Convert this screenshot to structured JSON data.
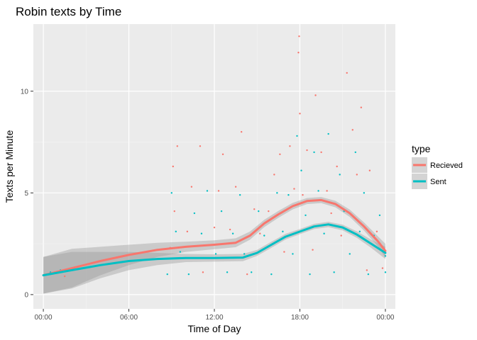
{
  "chart_data": {
    "type": "scatter",
    "title": "Robin texts by Time",
    "xlabel": "Time of Day",
    "ylabel": "Texts per Minute",
    "x_unit": "hours",
    "xlim": [
      -0.7,
      24.7
    ],
    "ylim": [
      -0.7,
      13.3
    ],
    "x_ticks": [
      {
        "value": 0,
        "label": "00:00"
      },
      {
        "value": 6,
        "label": "06:00"
      },
      {
        "value": 12,
        "label": "12:00"
      },
      {
        "value": 18,
        "label": "18:00"
      },
      {
        "value": 24,
        "label": "00:00"
      }
    ],
    "y_ticks": [
      {
        "value": 0,
        "label": "0"
      },
      {
        "value": 5,
        "label": "5"
      },
      {
        "value": 10,
        "label": "10"
      }
    ],
    "grid": true,
    "legend": {
      "title": "type",
      "position": "right",
      "entries": [
        {
          "label": "Recieved",
          "color": "#F8766D"
        },
        {
          "label": "Sent",
          "color": "#00BFC4"
        }
      ]
    },
    "smooth_series": [
      {
        "name": "Recieved",
        "color": "#F8766D",
        "points": [
          [
            0,
            0.95
          ],
          [
            2,
            1.3
          ],
          [
            4,
            1.65
          ],
          [
            6,
            1.95
          ],
          [
            8,
            2.2
          ],
          [
            10,
            2.35
          ],
          [
            12,
            2.45
          ],
          [
            13.5,
            2.55
          ],
          [
            14.5,
            2.9
          ],
          [
            15.5,
            3.5
          ],
          [
            16.5,
            3.95
          ],
          [
            17.5,
            4.35
          ],
          [
            18.5,
            4.6
          ],
          [
            19.5,
            4.65
          ],
          [
            20.5,
            4.45
          ],
          [
            21.5,
            4.0
          ],
          [
            22.5,
            3.35
          ],
          [
            23.5,
            2.6
          ],
          [
            24,
            2.15
          ]
        ],
        "band": [
          0.9,
          0.95,
          0.7,
          0.5,
          0.35,
          0.25,
          0.22,
          0.22,
          0.2,
          0.18,
          0.17,
          0.16,
          0.15,
          0.15,
          0.16,
          0.18,
          0.2,
          0.25,
          0.35
        ]
      },
      {
        "name": "Sent",
        "color": "#00BFC4",
        "points": [
          [
            0,
            0.95
          ],
          [
            2,
            1.2
          ],
          [
            4,
            1.45
          ],
          [
            6,
            1.65
          ],
          [
            8,
            1.75
          ],
          [
            10,
            1.8
          ],
          [
            12,
            1.8
          ],
          [
            14,
            1.82
          ],
          [
            15,
            2.05
          ],
          [
            16,
            2.45
          ],
          [
            17,
            2.85
          ],
          [
            18,
            3.1
          ],
          [
            19,
            3.35
          ],
          [
            20,
            3.45
          ],
          [
            21,
            3.3
          ],
          [
            22,
            2.95
          ],
          [
            23,
            2.5
          ],
          [
            24,
            2.05
          ]
        ],
        "band": [
          0.9,
          0.9,
          0.65,
          0.45,
          0.3,
          0.2,
          0.18,
          0.18,
          0.15,
          0.15,
          0.14,
          0.13,
          0.13,
          0.13,
          0.14,
          0.16,
          0.2,
          0.3
        ]
      }
    ],
    "scatter_series": [
      {
        "name": "Recieved",
        "color": "#F8766D",
        "points": [
          [
            0.3,
            1.0
          ],
          [
            1.5,
            0.9
          ],
          [
            8.9,
            2.3
          ],
          [
            9.2,
            4.1
          ],
          [
            9.1,
            6.3
          ],
          [
            9.4,
            7.3
          ],
          [
            10.1,
            3.1
          ],
          [
            10.4,
            5.3
          ],
          [
            11.0,
            7.3
          ],
          [
            11.2,
            1.1
          ],
          [
            12.0,
            3.3
          ],
          [
            12.3,
            5.1
          ],
          [
            12.6,
            6.9
          ],
          [
            13.1,
            3.2
          ],
          [
            13.5,
            5.3
          ],
          [
            13.9,
            8.0
          ],
          [
            14.3,
            1.0
          ],
          [
            14.8,
            4.2
          ],
          [
            15.2,
            3.0
          ],
          [
            15.8,
            4.1
          ],
          [
            16.2,
            5.9
          ],
          [
            16.6,
            6.9
          ],
          [
            16.9,
            2.1
          ],
          [
            17.3,
            7.3
          ],
          [
            17.6,
            5.2
          ],
          [
            17.9,
            11.9
          ],
          [
            17.95,
            12.7
          ],
          [
            18.0,
            8.9
          ],
          [
            18.2,
            4.9
          ],
          [
            18.5,
            7.1
          ],
          [
            18.9,
            2.2
          ],
          [
            19.1,
            9.8
          ],
          [
            19.5,
            7.0
          ],
          [
            19.9,
            5.1
          ],
          [
            20.2,
            4.0
          ],
          [
            20.6,
            6.3
          ],
          [
            20.9,
            2.9
          ],
          [
            21.3,
            10.9
          ],
          [
            21.7,
            8.1
          ],
          [
            22.0,
            5.9
          ],
          [
            22.3,
            9.2
          ],
          [
            22.7,
            1.2
          ],
          [
            22.9,
            6.1
          ],
          [
            23.4,
            3.1
          ],
          [
            23.8,
            1.3
          ]
        ]
      },
      {
        "name": "Sent",
        "color": "#00BFC4",
        "points": [
          [
            0.5,
            1.1
          ],
          [
            1.2,
            1.2
          ],
          [
            8.7,
            1.0
          ],
          [
            9.0,
            5.0
          ],
          [
            9.3,
            3.1
          ],
          [
            9.6,
            2.1
          ],
          [
            10.2,
            1.0
          ],
          [
            10.6,
            4.0
          ],
          [
            11.1,
            3.0
          ],
          [
            11.5,
            5.1
          ],
          [
            12.1,
            2.0
          ],
          [
            12.5,
            4.1
          ],
          [
            12.9,
            1.1
          ],
          [
            13.3,
            3.0
          ],
          [
            13.8,
            4.9
          ],
          [
            14.1,
            2.0
          ],
          [
            14.6,
            1.1
          ],
          [
            15.1,
            4.1
          ],
          [
            15.5,
            2.9
          ],
          [
            16.0,
            1.0
          ],
          [
            16.4,
            5.0
          ],
          [
            16.8,
            3.1
          ],
          [
            17.2,
            4.9
          ],
          [
            17.5,
            2.0
          ],
          [
            17.8,
            7.8
          ],
          [
            18.1,
            6.1
          ],
          [
            18.4,
            3.9
          ],
          [
            18.7,
            1.0
          ],
          [
            19.0,
            7.0
          ],
          [
            19.3,
            5.1
          ],
          [
            19.7,
            3.0
          ],
          [
            20.0,
            7.9
          ],
          [
            20.4,
            1.1
          ],
          [
            20.8,
            5.9
          ],
          [
            21.1,
            4.1
          ],
          [
            21.5,
            2.0
          ],
          [
            21.9,
            7.0
          ],
          [
            22.2,
            3.1
          ],
          [
            22.5,
            5.0
          ],
          [
            22.8,
            1.0
          ],
          [
            23.2,
            2.9
          ],
          [
            23.6,
            3.9
          ],
          [
            24.0,
            1.9
          ],
          [
            24.0,
            1.1
          ]
        ]
      }
    ]
  }
}
